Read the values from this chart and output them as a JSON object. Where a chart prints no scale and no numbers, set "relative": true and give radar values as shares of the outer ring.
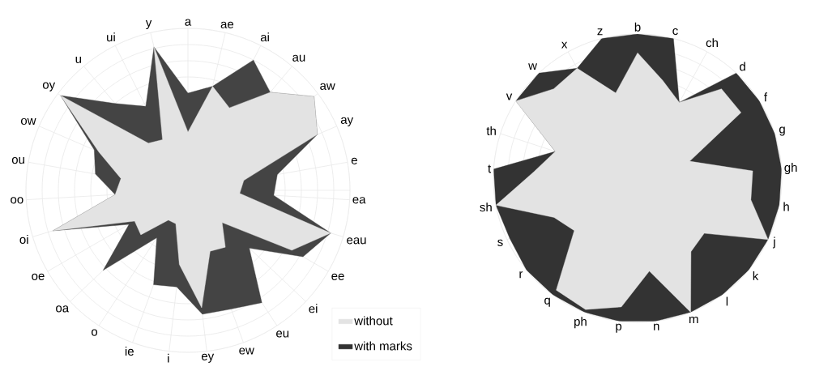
{
  "chart_data": [
    {
      "type": "radar",
      "relative": true,
      "grid": true,
      "legend": false,
      "categories": [
        "a",
        "ae",
        "ai",
        "au",
        "aw",
        "ay",
        "e",
        "ea",
        "eau",
        "ee",
        "ei",
        "eu",
        "ew",
        "ey",
        "i",
        "ie",
        "o",
        "oa",
        "oe",
        "oi",
        "oo",
        "ou",
        "ow",
        "oy",
        "u",
        "ui",
        "y"
      ],
      "series": [
        {
          "color": "#e3e3e3",
          "values": [
            0.36,
            0.66,
            0.57,
            0.79,
            0.97,
            0.87,
            0.35,
            0.32,
            0.92,
            0.74,
            0.29,
            0.42,
            0.4,
            0.73,
            0.46,
            0.22,
            0.22,
            0.4,
            0.38,
            0.87,
            0.45,
            0.42,
            0.6,
            0.98,
            0.38,
            0.35,
            0.91
          ]
        },
        {
          "color": "#444444",
          "values": [
            0.6,
            0.66,
            0.9,
            0.79,
            0.97,
            0.87,
            0.56,
            0.53,
            0.92,
            0.82,
            0.52,
            0.83,
            0.78,
            0.77,
            0.6,
            0.62,
            0.35,
            0.72,
            0.42,
            0.87,
            0.45,
            0.58,
            0.63,
            0.98,
            0.7,
            0.58,
            0.91
          ]
        }
      ]
    },
    {
      "type": "radar",
      "relative": true,
      "grid": true,
      "legend": "bottom left",
      "categories": [
        "b",
        "c",
        "ch",
        "d",
        "f",
        "g",
        "gh",
        "h",
        "j",
        "k",
        "l",
        "m",
        "n",
        "p",
        "ph",
        "q",
        "r",
        "s",
        "sh",
        "t",
        "th",
        "v",
        "w",
        "x",
        "z"
      ],
      "series": [
        {
          "name": "without",
          "color": "#e3e3e3",
          "values": [
            0.87,
            0.7,
            0.6,
            0.85,
            0.85,
            0.38,
            0.8,
            0.8,
            1,
            0.6,
            0.63,
            1,
            0.65,
            0.9,
            0.98,
            0.96,
            0.57,
            0.64,
            1,
            0.72,
            0.6,
            1,
            0.85,
            0.87,
            0.61
          ]
        },
        {
          "name": "with marks",
          "color": "#333333",
          "values": [
            1,
            1,
            0.6,
            1,
            1,
            1,
            1,
            1,
            1,
            1,
            1,
            1,
            1,
            1,
            1,
            1,
            1,
            0.98,
            1,
            1,
            0.6,
            1,
            1,
            0.87,
            1
          ]
        }
      ]
    }
  ]
}
